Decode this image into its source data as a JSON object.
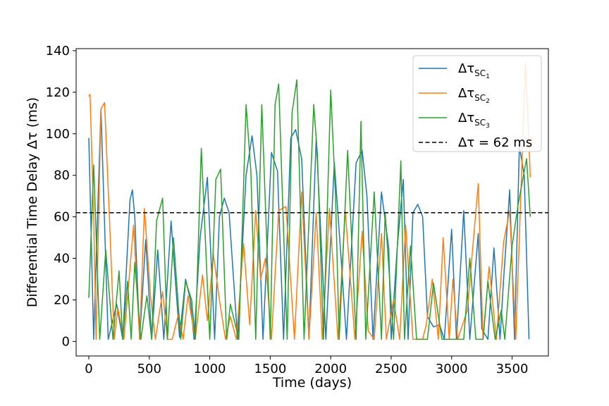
{
  "chart_data": {
    "type": "line",
    "title": "",
    "xlabel": "Time (days)",
    "ylabel": "Differential Time Delay Δτ (ms)",
    "xlim": [
      -105,
      3800
    ],
    "ylim": [
      -7,
      141
    ],
    "xticks": [
      0,
      500,
      1000,
      1500,
      2000,
      2500,
      3000,
      3500
    ],
    "yticks": [
      0,
      20,
      40,
      60,
      80,
      100,
      120,
      140
    ],
    "grid": false,
    "legend_position": "upper-right",
    "threshold": {
      "value": 62,
      "label": "Δτ = 62 ms",
      "style": "dashed",
      "color": "#000000"
    },
    "series": [
      {
        "name": "ΔτSC1",
        "symbol": "Δτ",
        "subscript": "SC",
        "subsubscript": "1",
        "color": "#1f77b4",
        "x": [
          0,
          40,
          100,
          160,
          230,
          280,
          340,
          360,
          380,
          420,
          470,
          520,
          570,
          620,
          680,
          750,
          800,
          840,
          870,
          920,
          980,
          1040,
          1080,
          1120,
          1160,
          1230,
          1300,
          1350,
          1390,
          1440,
          1510,
          1560,
          1610,
          1670,
          1710,
          1760,
          1820,
          1880,
          1910,
          1960,
          2030,
          2080,
          2130,
          2210,
          2260,
          2300,
          2350,
          2420,
          2480,
          2500,
          2550,
          2600,
          2640,
          2680,
          2720,
          2760,
          2800,
          2850,
          2900,
          2940,
          3000,
          3040,
          3100,
          3150,
          3220,
          3250,
          3300,
          3350,
          3400,
          3430,
          3480,
          3520,
          3560,
          3600,
          3640
        ],
        "y": [
          98,
          1,
          112,
          1,
          18,
          1,
          68,
          73,
          60,
          1,
          49,
          1,
          44,
          1,
          58,
          2,
          30,
          20,
          1,
          50,
          79,
          1,
          60,
          69,
          62,
          1,
          80,
          99,
          80,
          1,
          91,
          82,
          1,
          98,
          102,
          88,
          1,
          98,
          62,
          1,
          86,
          45,
          1,
          86,
          92,
          70,
          1,
          72,
          45,
          1,
          45,
          78,
          1,
          62,
          66,
          60,
          12,
          7,
          8,
          1,
          54,
          1,
          63,
          1,
          52,
          6,
          1,
          45,
          1,
          30,
          73,
          1,
          94,
          80,
          1
        ]
      },
      {
        "name": "ΔτSC2",
        "symbol": "Δτ",
        "subscript": "SC",
        "subsubscript": "2",
        "color": "#ff7f0e",
        "x": [
          0,
          10,
          40,
          60,
          100,
          130,
          170,
          210,
          240,
          290,
          330,
          370,
          420,
          460,
          510,
          550,
          610,
          650,
          690,
          740,
          780,
          820,
          880,
          940,
          980,
          1030,
          1080,
          1130,
          1170,
          1220,
          1280,
          1330,
          1380,
          1420,
          1460,
          1510,
          1570,
          1630,
          1700,
          1760,
          1820,
          1880,
          1930,
          1990,
          2060,
          2120,
          2200,
          2260,
          2310,
          2360,
          2420,
          2460,
          2520,
          2570,
          2620,
          2680,
          2760,
          2790,
          2840,
          2890,
          2930,
          2980,
          3010,
          3050,
          3130,
          3220,
          3260,
          3310,
          3370,
          3430,
          3480,
          3530,
          3560,
          3610,
          3630,
          3650
        ],
        "y": [
          118,
          119,
          60,
          1,
          112,
          115,
          60,
          1,
          16,
          1,
          28,
          56,
          1,
          64,
          22,
          1,
          24,
          1,
          1,
          13,
          1,
          22,
          1,
          32,
          10,
          42,
          20,
          1,
          12,
          1,
          47,
          8,
          63,
          30,
          40,
          1,
          63,
          65,
          1,
          72,
          1,
          62,
          1,
          64,
          1,
          63,
          1,
          53,
          5,
          1,
          52,
          1,
          20,
          1,
          56,
          1,
          1,
          8,
          30,
          1,
          50,
          1,
          30,
          1,
          15,
          76,
          1,
          36,
          1,
          48,
          63,
          1,
          50,
          134,
          110,
          79
        ]
      },
      {
        "name": "ΔτSC3",
        "symbol": "Δτ",
        "subscript": "SC",
        "subsubscript": "3",
        "color": "#2ca02c",
        "x": [
          0,
          40,
          90,
          140,
          200,
          250,
          280,
          320,
          350,
          380,
          430,
          480,
          520,
          560,
          610,
          650,
          700,
          760,
          800,
          850,
          880,
          930,
          1000,
          1050,
          1090,
          1140,
          1170,
          1240,
          1300,
          1340,
          1380,
          1430,
          1500,
          1540,
          1570,
          1640,
          1680,
          1720,
          1780,
          1860,
          1890,
          1940,
          2000,
          2040,
          2070,
          2140,
          2210,
          2250,
          2290,
          2360,
          2420,
          2450,
          2520,
          2580,
          2610,
          2660,
          2710,
          2750,
          2800,
          2850,
          2920,
          2980,
          3040,
          3100,
          3150,
          3200,
          3260,
          3300,
          3360,
          3410,
          3440,
          3500,
          3550,
          3620,
          3650
        ],
        "y": [
          21,
          85,
          1,
          44,
          1,
          34,
          1,
          29,
          1,
          38,
          1,
          22,
          1,
          58,
          69,
          1,
          50,
          1,
          29,
          20,
          1,
          93,
          1,
          78,
          83,
          1,
          18,
          1,
          114,
          82,
          1,
          114,
          1,
          114,
          124,
          1,
          110,
          126,
          1,
          114,
          90,
          1,
          121,
          70,
          1,
          92,
          1,
          106,
          1,
          72,
          1,
          62,
          1,
          87,
          1,
          46,
          1,
          1,
          1,
          28,
          1,
          1,
          1,
          1,
          40,
          1,
          1,
          29,
          1,
          15,
          1,
          46,
          66,
          88,
          60
        ]
      }
    ]
  }
}
